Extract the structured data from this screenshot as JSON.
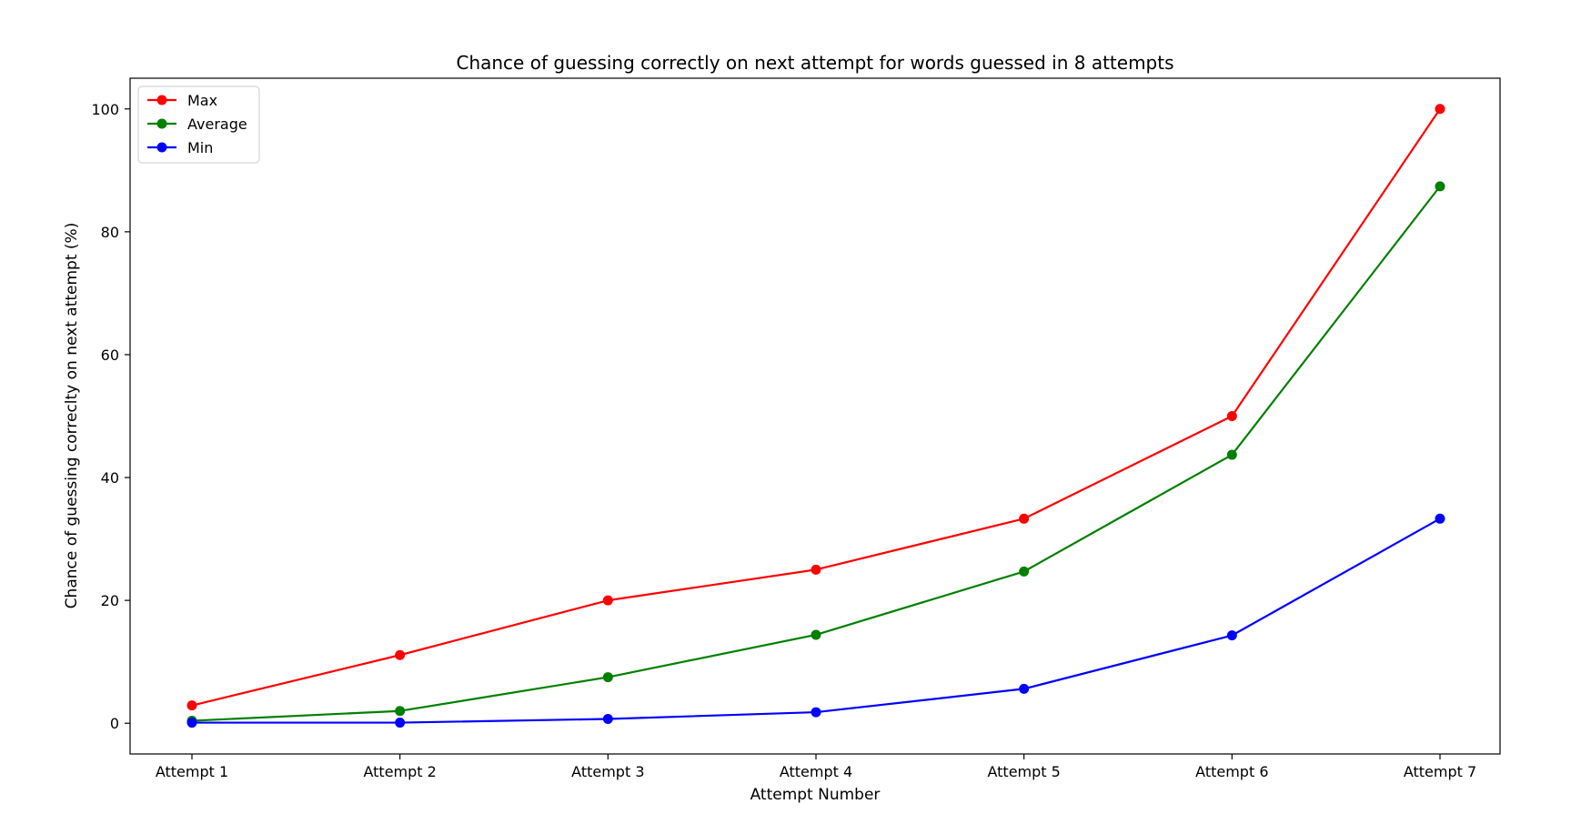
{
  "chart_data": {
    "type": "line",
    "title": "Chance of guessing correctly on next attempt for words guessed in 8 attempts",
    "xlabel": "Attempt Number",
    "ylabel": "Chance of guessing correclty on next attempt (%)",
    "categories": [
      "Attempt 1",
      "Attempt 2",
      "Attempt 3",
      "Attempt 4",
      "Attempt 5",
      "Attempt 6",
      "Attempt 7"
    ],
    "ylim": [
      -5,
      105
    ],
    "yticks": [
      0,
      20,
      40,
      60,
      80,
      100
    ],
    "grid": false,
    "legend_position": "top-left",
    "series": [
      {
        "name": "Max",
        "color": "#ff0000",
        "values": [
          2.9,
          11.1,
          20.0,
          25.0,
          33.3,
          50.0,
          100.0
        ]
      },
      {
        "name": "Average",
        "color": "#008000",
        "values": [
          0.4,
          2.0,
          7.5,
          14.4,
          24.7,
          43.7,
          87.4
        ]
      },
      {
        "name": "Min",
        "color": "#0000ff",
        "values": [
          0.1,
          0.1,
          0.7,
          1.8,
          5.6,
          14.3,
          33.3
        ]
      }
    ]
  }
}
